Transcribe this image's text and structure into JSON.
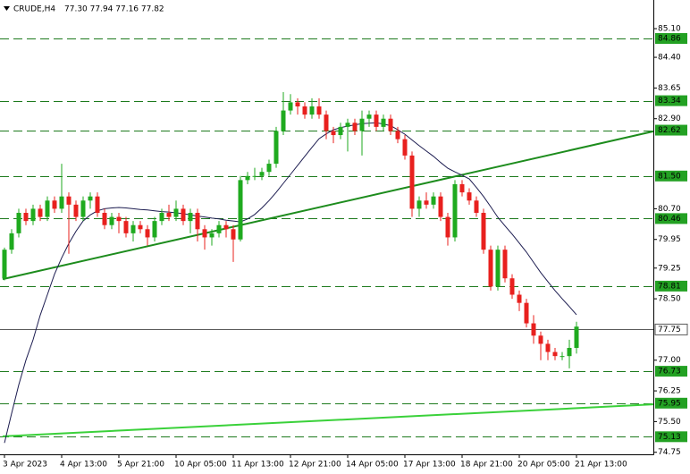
{
  "chart_data": {
    "type": "candlestick",
    "header": {
      "symbol": "CRUDE,H4",
      "ohlc_text": "77.30 77.94 77.16 77.82"
    },
    "categories": [
      "3 Apr 2023",
      null,
      null,
      null,
      null,
      null,
      null,
      null,
      "4 Apr 13:00",
      null,
      null,
      null,
      null,
      null,
      null,
      null,
      "5 Apr 21:00",
      null,
      null,
      null,
      null,
      null,
      null,
      null,
      "10 Apr 05:00",
      null,
      null,
      null,
      null,
      null,
      null,
      null,
      "11 Apr 13:00",
      null,
      null,
      null,
      null,
      null,
      null,
      null,
      "12 Apr 21:00",
      null,
      null,
      null,
      null,
      null,
      null,
      null,
      "14 Apr 05:00",
      null,
      null,
      null,
      null,
      null,
      null,
      null,
      "17 Apr 13:00",
      null,
      null,
      null,
      null,
      null,
      null,
      null,
      "18 Apr 21:00",
      null,
      null,
      null,
      null,
      null,
      null,
      null,
      "20 Apr 05:00",
      null,
      null,
      null,
      null,
      null,
      null,
      null,
      "21 Apr 13:00"
    ],
    "open": [
      79.0,
      79.7,
      80.1,
      80.6,
      80.4,
      80.7,
      80.5,
      80.9,
      80.7,
      81.0,
      80.8,
      80.5,
      80.9,
      81.0,
      80.6,
      80.3,
      80.5,
      80.4,
      80.1,
      80.3,
      80.2,
      80.0,
      80.4,
      80.6,
      80.5,
      80.7,
      80.4,
      80.6,
      80.2,
      80.0,
      80.1,
      80.3,
      80.2,
      79.95,
      81.4,
      81.5,
      81.5,
      81.6,
      81.8,
      82.6,
      83.1,
      83.3,
      83.2,
      83.0,
      83.2,
      83.0,
      82.6,
      82.5,
      82.7,
      82.8,
      82.6,
      82.9,
      83.0,
      82.7,
      82.9,
      82.6,
      82.4,
      82.0,
      80.7,
      80.9,
      80.8,
      81.0,
      80.5,
      80.0,
      81.3,
      81.1,
      80.9,
      80.6,
      79.7,
      78.8,
      79.7,
      79.0,
      78.6,
      78.4,
      77.9,
      77.6,
      77.4,
      77.2,
      77.1,
      77.1,
      77.3
    ],
    "high": [
      79.75,
      80.2,
      80.7,
      80.7,
      80.8,
      80.8,
      81.0,
      81.0,
      81.8,
      81.1,
      80.9,
      81.0,
      81.1,
      81.1,
      80.7,
      80.6,
      80.6,
      80.5,
      80.4,
      80.4,
      80.3,
      80.5,
      80.7,
      80.8,
      80.9,
      80.8,
      80.7,
      80.7,
      80.3,
      80.2,
      80.4,
      80.4,
      80.3,
      81.5,
      81.6,
      81.7,
      81.7,
      81.9,
      82.7,
      83.55,
      83.5,
      83.4,
      83.3,
      83.4,
      83.4,
      83.1,
      82.7,
      82.8,
      82.9,
      82.9,
      83.1,
      83.1,
      83.1,
      83.0,
      83.0,
      82.7,
      82.5,
      82.1,
      81.0,
      81.1,
      81.1,
      81.1,
      80.6,
      81.4,
      81.4,
      81.2,
      81.0,
      80.7,
      79.8,
      79.8,
      79.8,
      79.1,
      78.7,
      78.5,
      78.1,
      77.7,
      77.5,
      77.3,
      77.2,
      77.5,
      77.94
    ],
    "low": [
      78.95,
      79.6,
      80.0,
      80.3,
      80.3,
      80.4,
      80.4,
      80.6,
      80.6,
      79.6,
      80.4,
      80.4,
      80.7,
      80.5,
      80.2,
      80.2,
      80.1,
      80.0,
      79.9,
      80.1,
      79.8,
      79.9,
      80.3,
      80.4,
      80.4,
      80.3,
      80.1,
      79.9,
      79.7,
      79.8,
      80.0,
      80.0,
      79.4,
      79.9,
      81.3,
      81.4,
      81.4,
      81.5,
      81.7,
      82.5,
      83.0,
      83.0,
      82.9,
      82.9,
      82.9,
      82.4,
      82.3,
      82.4,
      82.1,
      82.5,
      82.0,
      82.7,
      82.6,
      82.6,
      82.5,
      82.3,
      81.9,
      80.5,
      80.5,
      80.7,
      80.7,
      80.4,
      79.8,
      79.9,
      81.0,
      80.8,
      80.5,
      79.6,
      78.7,
      78.7,
      78.9,
      78.5,
      78.2,
      77.8,
      77.4,
      77.0,
      77.0,
      77.0,
      77.0,
      76.8,
      77.16
    ],
    "close": [
      79.7,
      80.1,
      80.6,
      80.4,
      80.7,
      80.5,
      80.9,
      80.7,
      81.0,
      80.8,
      80.5,
      80.9,
      81.0,
      80.6,
      80.3,
      80.5,
      80.4,
      80.1,
      80.3,
      80.2,
      80.0,
      80.4,
      80.6,
      80.5,
      80.7,
      80.4,
      80.6,
      80.2,
      80.0,
      80.1,
      80.3,
      80.2,
      79.95,
      81.4,
      81.5,
      81.5,
      81.6,
      81.8,
      82.6,
      83.1,
      83.3,
      83.2,
      83.0,
      83.2,
      83.0,
      82.6,
      82.5,
      82.7,
      82.8,
      82.6,
      82.9,
      83.0,
      82.7,
      82.9,
      82.6,
      82.4,
      82.0,
      80.7,
      80.9,
      80.8,
      81.0,
      80.5,
      80.0,
      81.3,
      81.1,
      80.9,
      80.6,
      79.7,
      78.8,
      79.7,
      79.0,
      78.6,
      78.4,
      77.9,
      77.6,
      77.4,
      77.2,
      77.1,
      77.1,
      77.3,
      77.82
    ],
    "up_color": "#1faa1f",
    "down_color": "#e8201e",
    "ma": {
      "color": "#1c1c50",
      "values": [
        74.98,
        75.7,
        76.4,
        77.0,
        77.5,
        78.1,
        78.6,
        79.1,
        79.5,
        79.85,
        80.15,
        80.4,
        80.55,
        80.65,
        80.7,
        80.72,
        80.73,
        80.72,
        80.7,
        80.68,
        80.67,
        80.65,
        80.63,
        80.62,
        80.6,
        80.58,
        80.55,
        80.52,
        80.5,
        80.47,
        80.45,
        80.42,
        80.4,
        80.38,
        80.45,
        80.56,
        80.72,
        80.9,
        81.1,
        81.32,
        81.54,
        81.76,
        81.98,
        82.2,
        82.41,
        82.53,
        82.63,
        82.68,
        82.72,
        82.75,
        82.78,
        82.79,
        82.8,
        82.77,
        82.73,
        82.63,
        82.52,
        82.38,
        82.24,
        82.11,
        81.98,
        81.83,
        81.69,
        81.6,
        81.52,
        81.43,
        81.22,
        81.0,
        80.75,
        80.49,
        80.28,
        80.08,
        79.86,
        79.64,
        79.39,
        79.14,
        78.92,
        78.7,
        78.5,
        78.31,
        78.11
      ]
    },
    "trendlines": [
      {
        "color": "#1d8c1d",
        "values": [
          78.98,
          82.59
        ]
      },
      {
        "color": "#3ad13a",
        "values": [
          75.14,
          75.92
        ]
      }
    ],
    "levels": [
      84.86,
      83.34,
      82.62,
      {
        "value": 81.5,
        "label": "81.50"
      },
      80.46,
      78.81,
      76.73,
      75.95,
      75.13
    ],
    "level_color": "#1d7a1d",
    "bid": 77.75,
    "ylim": [
      74.7,
      85.8
    ],
    "yticks": [
      {
        "value": 85.1,
        "label": "85.10"
      },
      {
        "value": 84.4,
        "label": "84.40"
      },
      83.65,
      {
        "value": 82.9,
        "label": "82.90"
      },
      {
        "value": 80.7,
        "label": "80.70"
      },
      79.95,
      79.25,
      {
        "value": 78.5,
        "label": "78.50"
      },
      {
        "value": 77,
        "label": "77.00"
      },
      76.25,
      {
        "value": 75.5,
        "label": "75.50"
      },
      74.75
    ]
  }
}
